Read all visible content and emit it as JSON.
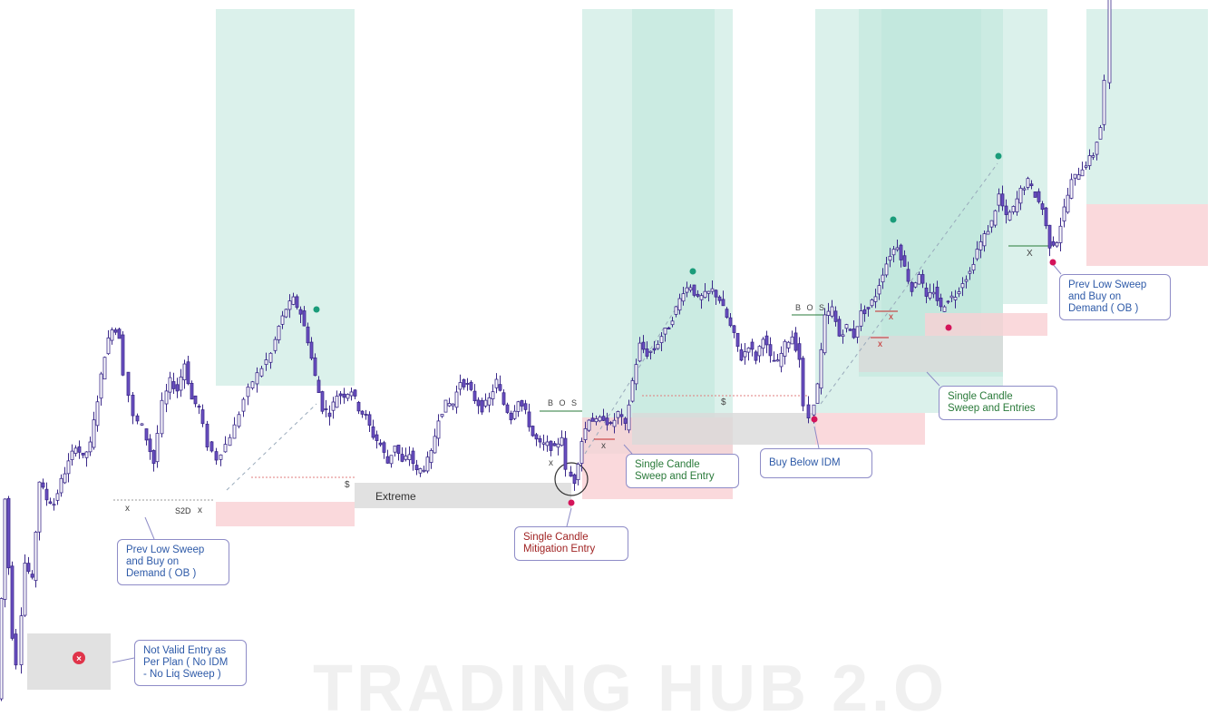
{
  "watermark": "TRADING HUB 2.O",
  "annotations": {
    "extreme": "Extreme",
    "s2d": "S2D",
    "bos_1": "B O S",
    "bos_2": "B O S",
    "dollar_1": "$",
    "dollar_2": "$",
    "x_mark": "x",
    "x_upper": "X"
  },
  "callouts": {
    "not_valid": "Not Valid Entry as\nPer Plan ( No IDM\n- No Liq Sweep )",
    "prev_low_1": "Prev Low Sweep\nand Buy on\nDemand ( OB )",
    "mitigation": "Single Candle\nMitigation Entry",
    "sweep_entry": "Single Candle\nSweep and Entry",
    "buy_idm": "Buy Below IDM",
    "sweep_entries": "Single Candle\nSweep and Entries",
    "prev_low_2": "Prev Low Sweep\nand Buy on\nDemand ( OB )"
  },
  "colors": {
    "candle_bull": "#ffffff",
    "candle_bear": "#6a4fc2",
    "candle_outline": "#3c2a8a",
    "target_zone": "#bde6db",
    "target_zone_dark": "#7ecdbb",
    "stop_zone": "#f9cfd3",
    "gray_zone": "#d9d9d9",
    "swing_high_dot": "#1a9c7a",
    "swing_low_dot": "#d4145a"
  },
  "chart_data": {
    "type": "candlestick",
    "title": "",
    "xlabel": "",
    "ylabel": "",
    "ylim": [
      0,
      790
    ],
    "note_scale": "price index, higher = higher price; no axis printed",
    "price_path": [
      [
        0,
        20
      ],
      [
        8,
        240
      ],
      [
        16,
        90
      ],
      [
        22,
        60
      ],
      [
        30,
        170
      ],
      [
        38,
        150
      ],
      [
        46,
        260
      ],
      [
        54,
        240
      ],
      [
        62,
        235
      ],
      [
        70,
        260
      ],
      [
        78,
        280
      ],
      [
        86,
        300
      ],
      [
        94,
        285
      ],
      [
        102,
        300
      ],
      [
        110,
        350
      ],
      [
        118,
        400
      ],
      [
        126,
        430
      ],
      [
        134,
        420
      ],
      [
        140,
        380
      ],
      [
        150,
        330
      ],
      [
        160,
        320
      ],
      [
        172,
        280
      ],
      [
        182,
        345
      ],
      [
        190,
        370
      ],
      [
        198,
        360
      ],
      [
        206,
        390
      ],
      [
        214,
        350
      ],
      [
        222,
        340
      ],
      [
        232,
        300
      ],
      [
        242,
        285
      ],
      [
        252,
        300
      ],
      [
        262,
        320
      ],
      [
        272,
        350
      ],
      [
        282,
        370
      ],
      [
        292,
        385
      ],
      [
        302,
        400
      ],
      [
        310,
        430
      ],
      [
        318,
        450
      ],
      [
        326,
        460
      ],
      [
        334,
        445
      ],
      [
        342,
        415
      ],
      [
        350,
        375
      ],
      [
        358,
        340
      ],
      [
        366,
        335
      ],
      [
        374,
        355
      ],
      [
        382,
        355
      ],
      [
        390,
        360
      ],
      [
        398,
        340
      ],
      [
        406,
        330
      ],
      [
        414,
        310
      ],
      [
        422,
        300
      ],
      [
        430,
        280
      ],
      [
        438,
        300
      ],
      [
        446,
        280
      ],
      [
        454,
        290
      ],
      [
        462,
        270
      ],
      [
        470,
        275
      ],
      [
        478,
        290
      ],
      [
        486,
        330
      ],
      [
        494,
        345
      ],
      [
        502,
        345
      ],
      [
        510,
        370
      ],
      [
        518,
        365
      ],
      [
        526,
        350
      ],
      [
        534,
        340
      ],
      [
        542,
        350
      ],
      [
        550,
        370
      ],
      [
        558,
        345
      ],
      [
        566,
        330
      ],
      [
        574,
        350
      ],
      [
        582,
        335
      ],
      [
        590,
        310
      ],
      [
        598,
        300
      ],
      [
        606,
        300
      ],
      [
        614,
        295
      ],
      [
        622,
        310
      ],
      [
        628,
        270
      ],
      [
        636,
        260
      ],
      [
        644,
        305
      ],
      [
        652,
        330
      ],
      [
        660,
        325
      ],
      [
        668,
        330
      ],
      [
        676,
        320
      ],
      [
        684,
        335
      ],
      [
        692,
        320
      ],
      [
        700,
        370
      ],
      [
        708,
        410
      ],
      [
        716,
        400
      ],
      [
        724,
        405
      ],
      [
        732,
        420
      ],
      [
        740,
        430
      ],
      [
        748,
        450
      ],
      [
        756,
        470
      ],
      [
        764,
        475
      ],
      [
        772,
        460
      ],
      [
        780,
        465
      ],
      [
        788,
        470
      ],
      [
        796,
        460
      ],
      [
        804,
        440
      ],
      [
        812,
        420
      ],
      [
        820,
        395
      ],
      [
        828,
        410
      ],
      [
        836,
        395
      ],
      [
        844,
        420
      ],
      [
        852,
        395
      ],
      [
        860,
        390
      ],
      [
        868,
        410
      ],
      [
        876,
        420
      ],
      [
        884,
        395
      ],
      [
        890,
        340
      ],
      [
        896,
        330
      ],
      [
        904,
        365
      ],
      [
        912,
        440
      ],
      [
        920,
        450
      ],
      [
        928,
        420
      ],
      [
        936,
        430
      ],
      [
        944,
        420
      ],
      [
        952,
        445
      ],
      [
        960,
        450
      ],
      [
        968,
        465
      ],
      [
        976,
        490
      ],
      [
        984,
        510
      ],
      [
        992,
        520
      ],
      [
        1000,
        495
      ],
      [
        1008,
        470
      ],
      [
        1016,
        490
      ],
      [
        1024,
        460
      ],
      [
        1032,
        470
      ],
      [
        1040,
        450
      ],
      [
        1048,
        460
      ],
      [
        1056,
        465
      ],
      [
        1064,
        480
      ],
      [
        1072,
        490
      ],
      [
        1080,
        515
      ],
      [
        1088,
        530
      ],
      [
        1096,
        545
      ],
      [
        1104,
        575
      ],
      [
        1112,
        550
      ],
      [
        1120,
        560
      ],
      [
        1128,
        580
      ],
      [
        1136,
        590
      ],
      [
        1144,
        575
      ],
      [
        1152,
        560
      ],
      [
        1160,
        520
      ],
      [
        1168,
        525
      ],
      [
        1176,
        560
      ],
      [
        1184,
        590
      ],
      [
        1192,
        600
      ],
      [
        1200,
        610
      ],
      [
        1208,
        620
      ],
      [
        1216,
        650
      ],
      [
        1222,
        700
      ],
      [
        1228,
        790
      ]
    ],
    "zones": [
      {
        "kind": "target",
        "x": [
          238,
          391
        ],
        "y": [
          365,
          780
        ]
      },
      {
        "kind": "stop",
        "x": [
          238,
          391
        ],
        "y": [
          210,
          237
        ]
      },
      {
        "kind": "gray",
        "x": [
          391,
          630
        ],
        "y": [
          230,
          258
        ]
      },
      {
        "kind": "target",
        "x": [
          642,
          808
        ],
        "y": [
          290,
          780
        ]
      },
      {
        "kind": "target",
        "x": [
          697,
          788
        ],
        "y": [
          330,
          780
        ]
      },
      {
        "kind": "stop",
        "x": [
          642,
          808
        ],
        "y": [
          240,
          330
        ]
      },
      {
        "kind": "gray",
        "x": [
          697,
          900
        ],
        "y": [
          300,
          335
        ]
      },
      {
        "kind": "target",
        "x": [
          899,
          1106
        ],
        "y": [
          335,
          780
        ]
      },
      {
        "kind": "target",
        "x": [
          947,
          1106
        ],
        "y": [
          375,
          780
        ]
      },
      {
        "kind": "target",
        "x": [
          972,
          1082
        ],
        "y": [
          420,
          780
        ]
      },
      {
        "kind": "stop",
        "x": [
          899,
          1020
        ],
        "y": [
          300,
          335
        ]
      },
      {
        "kind": "stop",
        "x": [
          1020,
          1155
        ],
        "y": [
          420,
          445
        ]
      },
      {
        "kind": "gray",
        "x": [
          947,
          1106
        ],
        "y": [
          380,
          420
        ]
      },
      {
        "kind": "target",
        "x": [
          1106,
          1155
        ],
        "y": [
          455,
          780
        ]
      },
      {
        "kind": "target",
        "x": [
          1198,
          1332
        ],
        "y": [
          565,
          780
        ]
      },
      {
        "kind": "stop",
        "x": [
          1198,
          1332
        ],
        "y": [
          497,
          565
        ]
      },
      {
        "kind": "gray",
        "x": [
          30,
          122
        ],
        "y": [
          30,
          92
        ]
      }
    ],
    "swing_highs": [
      [
        349,
        445
      ],
      [
        764,
        487
      ],
      [
        985,
        544
      ],
      [
        1101,
        614
      ]
    ],
    "swing_lows": [
      [
        630,
        240
      ],
      [
        898,
        332
      ],
      [
        1046,
        433
      ],
      [
        1161,
        505
      ]
    ],
    "legend": "none",
    "grid": false
  }
}
